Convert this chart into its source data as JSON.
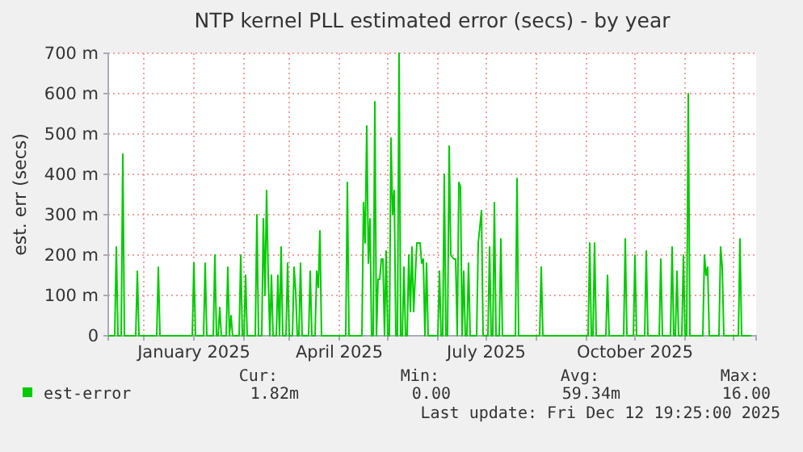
{
  "chart_data": {
    "type": "line",
    "title": "NTP kernel PLL estimated error (secs) - by year",
    "ylabel": "est. err (secs)",
    "xlim": [
      "2024-11-09",
      "2025-12-15"
    ],
    "ylim": [
      0,
      700
    ],
    "xticks": [
      {
        "value": "2024-12-01",
        "label": null
      },
      {
        "value": "2025-01-01",
        "label": "January 2025"
      },
      {
        "value": "2025-02-01",
        "label": null
      },
      {
        "value": "2025-03-01",
        "label": null
      },
      {
        "value": "2025-04-01",
        "label": "April 2025"
      },
      {
        "value": "2025-05-01",
        "label": null
      },
      {
        "value": "2025-06-01",
        "label": null
      },
      {
        "value": "2025-07-01",
        "label": "July 2025"
      },
      {
        "value": "2025-08-01",
        "label": null
      },
      {
        "value": "2025-09-01",
        "label": null
      },
      {
        "value": "2025-10-01",
        "label": "October 2025"
      },
      {
        "value": "2025-11-01",
        "label": null
      },
      {
        "value": "2025-12-01",
        "label": null
      }
    ],
    "yticks": [
      0,
      {
        "value": 100,
        "label": "100 m"
      },
      {
        "value": 200,
        "label": "200 m"
      },
      {
        "value": 300,
        "label": "300 m"
      },
      {
        "value": 400,
        "label": "400 m"
      },
      {
        "value": 500,
        "label": "500 m"
      },
      {
        "value": 600,
        "label": "600 m"
      },
      {
        "value": 700,
        "label": "700 m"
      }
    ],
    "grid": true,
    "legend": "bottom",
    "marker": "none",
    "line_style": "solid",
    "series": [
      {
        "name": "est-error",
        "color": "#00cc00",
        "x": [
          "2024-11-09",
          "2024-11-13",
          "2024-11-14",
          "2024-11-15",
          "2024-11-17",
          "2024-11-18",
          "2024-11-19",
          "2024-11-26",
          "2024-11-27",
          "2024-11-28",
          "2024-12-09",
          "2024-12-10",
          "2024-12-11",
          "2024-12-31",
          "2025-01-01",
          "2025-01-02",
          "2025-01-07",
          "2025-01-08",
          "2025-01-09",
          "2025-01-13",
          "2025-01-14",
          "2025-01-15",
          "2025-01-16",
          "2025-01-17",
          "2025-01-18",
          "2025-01-21",
          "2025-01-22",
          "2025-01-23",
          "2025-01-24",
          "2025-01-25",
          "2025-01-29",
          "2025-01-30",
          "2025-01-31",
          "2025-02-01",
          "2025-02-02",
          "2025-02-03",
          "2025-02-08",
          "2025-02-09",
          "2025-02-10",
          "2025-02-12",
          "2025-02-13",
          "2025-02-14",
          "2025-02-15",
          "2025-02-16",
          "2025-02-17",
          "2025-02-18",
          "2025-02-19",
          "2025-02-21",
          "2025-02-22",
          "2025-02-23",
          "2025-02-24",
          "2025-02-25",
          "2025-02-27",
          "2025-02-28",
          "2025-03-01",
          "2025-03-03",
          "2025-03-04",
          "2025-03-05",
          "2025-03-06",
          "2025-03-07",
          "2025-03-08",
          "2025-03-09",
          "2025-03-13",
          "2025-03-14",
          "2025-03-15",
          "2025-03-17",
          "2025-03-18",
          "2025-03-19",
          "2025-03-20",
          "2025-03-21",
          "2025-04-05",
          "2025-04-06",
          "2025-04-07",
          "2025-04-15",
          "2025-04-16",
          "2025-04-17",
          "2025-04-18",
          "2025-04-19",
          "2025-04-20",
          "2025-04-21",
          "2025-04-22",
          "2025-04-23",
          "2025-04-24",
          "2025-04-25",
          "2025-04-26",
          "2025-04-27",
          "2025-04-28",
          "2025-04-29",
          "2025-04-30",
          "2025-05-01",
          "2025-05-02",
          "2025-05-03",
          "2025-05-04",
          "2025-05-05",
          "2025-05-06",
          "2025-05-07",
          "2025-05-08",
          "2025-05-09",
          "2025-05-10",
          "2025-05-11",
          "2025-05-12",
          "2025-05-13",
          "2025-05-14",
          "2025-05-15",
          "2025-05-16",
          "2025-05-17",
          "2025-05-19",
          "2025-05-21",
          "2025-05-22",
          "2025-05-23",
          "2025-05-24",
          "2025-05-25",
          "2025-05-26",
          "2025-06-01",
          "2025-06-02",
          "2025-06-03",
          "2025-06-04",
          "2025-06-05",
          "2025-06-06",
          "2025-06-07",
          "2025-06-08",
          "2025-06-09",
          "2025-06-11",
          "2025-06-12",
          "2025-06-13",
          "2025-06-14",
          "2025-06-15",
          "2025-06-16",
          "2025-06-17",
          "2025-06-18",
          "2025-06-19",
          "2025-06-20",
          "2025-06-21",
          "2025-06-25",
          "2025-06-26",
          "2025-06-28",
          "2025-06-29",
          "2025-07-02",
          "2025-07-03",
          "2025-07-04",
          "2025-07-05",
          "2025-07-06",
          "2025-07-07",
          "2025-07-09",
          "2025-07-10",
          "2025-07-11",
          "2025-07-19",
          "2025-07-20",
          "2025-07-21",
          "2025-08-03",
          "2025-08-04",
          "2025-08-05",
          "2025-09-02",
          "2025-09-03",
          "2025-09-04",
          "2025-09-05",
          "2025-09-06",
          "2025-09-07",
          "2025-09-13",
          "2025-09-14",
          "2025-09-15",
          "2025-09-24",
          "2025-09-25",
          "2025-09-26",
          "2025-09-30",
          "2025-10-01",
          "2025-10-02",
          "2025-10-07",
          "2025-10-08",
          "2025-10-09",
          "2025-10-16",
          "2025-10-17",
          "2025-10-18",
          "2025-10-23",
          "2025-10-24",
          "2025-10-25",
          "2025-10-26",
          "2025-10-27",
          "2025-10-28",
          "2025-10-30",
          "2025-10-31",
          "2025-11-01",
          "2025-11-02",
          "2025-11-03",
          "2025-11-04",
          "2025-11-12",
          "2025-11-13",
          "2025-11-14",
          "2025-11-15",
          "2025-11-16",
          "2025-11-22",
          "2025-11-23",
          "2025-11-24",
          "2025-11-25",
          "2025-12-04",
          "2025-12-05",
          "2025-12-06",
          "2025-12-12"
        ],
        "values": [
          0,
          0,
          220,
          0,
          0,
          450,
          0,
          0,
          160,
          0,
          0,
          170,
          0,
          0,
          180,
          0,
          0,
          180,
          0,
          0,
          200,
          0,
          0,
          70,
          0,
          0,
          170,
          0,
          50,
          0,
          0,
          200,
          0,
          0,
          150,
          0,
          0,
          300,
          0,
          0,
          290,
          100,
          360,
          150,
          0,
          150,
          0,
          0,
          150,
          0,
          220,
          0,
          0,
          180,
          0,
          0,
          170,
          110,
          0,
          0,
          180,
          0,
          0,
          160,
          0,
          0,
          160,
          120,
          260,
          0,
          0,
          380,
          0,
          0,
          330,
          230,
          520,
          180,
          290,
          0,
          0,
          580,
          0,
          140,
          140,
          190,
          190,
          0,
          210,
          0,
          0,
          490,
          300,
          360,
          0,
          0,
          700,
          0,
          0,
          170,
          0,
          0,
          200,
          60,
          220,
          60,
          230,
          230,
          180,
          190,
          0,
          180,
          0,
          0,
          160,
          0,
          0,
          400,
          0,
          0,
          470,
          200,
          190,
          190,
          0,
          380,
          370,
          0,
          160,
          0,
          0,
          180,
          0,
          0,
          230,
          310,
          0,
          0,
          220,
          0,
          0,
          330,
          0,
          0,
          240,
          0,
          0,
          390,
          0,
          0,
          170,
          0,
          0,
          230,
          0,
          0,
          230,
          0,
          0,
          150,
          0,
          0,
          240,
          0,
          0,
          200,
          0,
          0,
          210,
          0,
          0,
          190,
          0,
          0,
          220,
          0,
          0,
          160,
          0,
          0,
          200,
          0,
          0,
          600,
          0,
          0,
          200,
          150,
          170,
          0,
          0,
          220,
          170,
          0,
          0,
          240,
          0,
          0
        ]
      }
    ],
    "annotations": [
      "Cur:",
      "Min:",
      "Avg:",
      "Max:",
      "1.82m",
      "0.00",
      "59.34m",
      "16.00",
      "Last update: Fri Dec 12 19:25:00 2025"
    ]
  }
}
